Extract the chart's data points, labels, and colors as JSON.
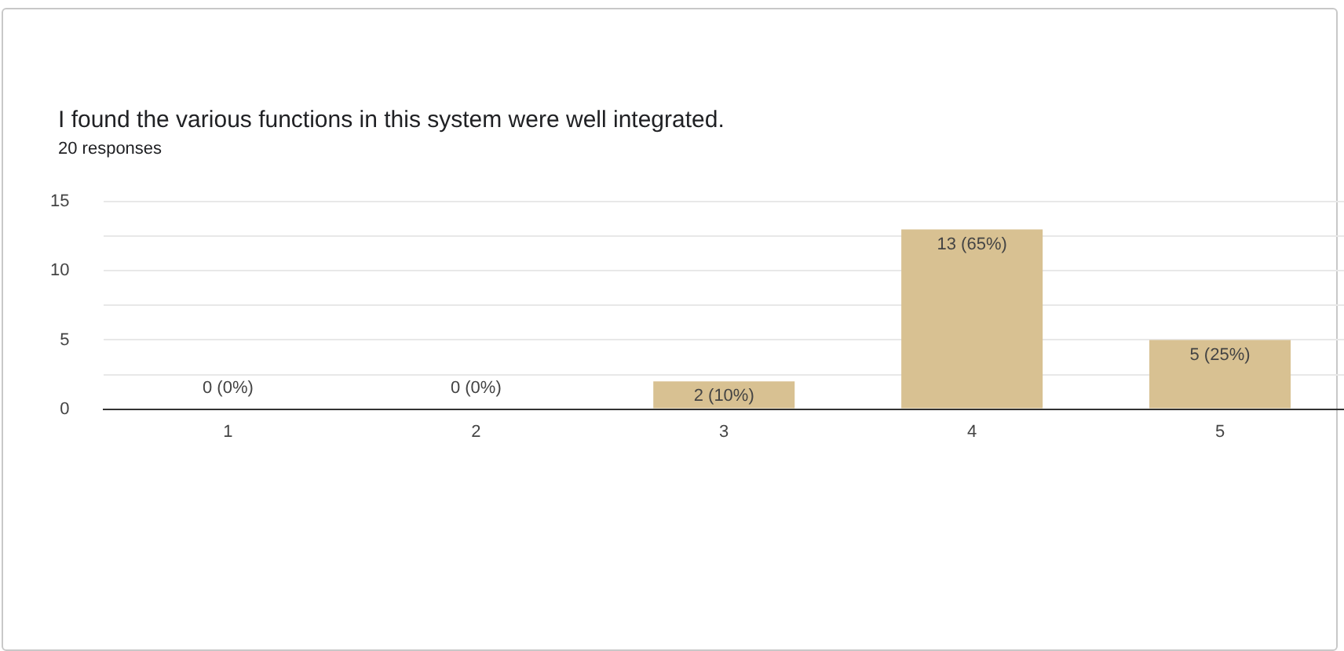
{
  "chart_data": {
    "type": "bar",
    "title": "I found the various functions in this system were well integrated.",
    "subtitle": "20 responses",
    "categories": [
      "1",
      "2",
      "3",
      "4",
      "5"
    ],
    "values": [
      0,
      0,
      2,
      13,
      5
    ],
    "value_labels": [
      "0 (0%)",
      "0 (0%)",
      "2 (10%)",
      "13 (65%)",
      "5 (25%)"
    ],
    "color": "#d8c192",
    "ylim": [
      0,
      15
    ],
    "yticks": [
      0,
      {
        "value": 2.5,
        "label": null
      },
      5,
      {
        "value": 7.5,
        "label": null
      },
      10,
      {
        "value": 12.5,
        "label": null
      },
      15
    ],
    "grid": "y",
    "legend": false
  }
}
